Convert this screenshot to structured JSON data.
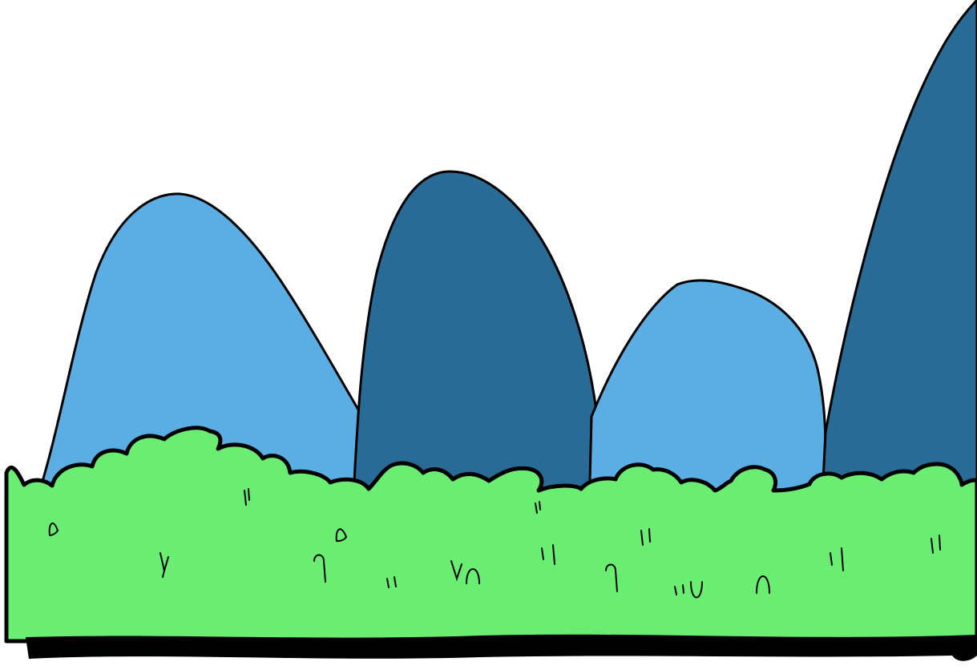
{
  "scene": {
    "background_color": "#ffffff",
    "hills": [
      {
        "name": "hill-light-1",
        "color": "#5aaee3"
      },
      {
        "name": "hill-dark-1",
        "color": "#286b96"
      },
      {
        "name": "hill-light-2",
        "color": "#5aaee3"
      },
      {
        "name": "hill-dark-2",
        "color": "#286b96"
      }
    ],
    "bush": {
      "fill_color": "#6aee72",
      "outline_color": "#000000",
      "ground_color": "#000000"
    }
  }
}
